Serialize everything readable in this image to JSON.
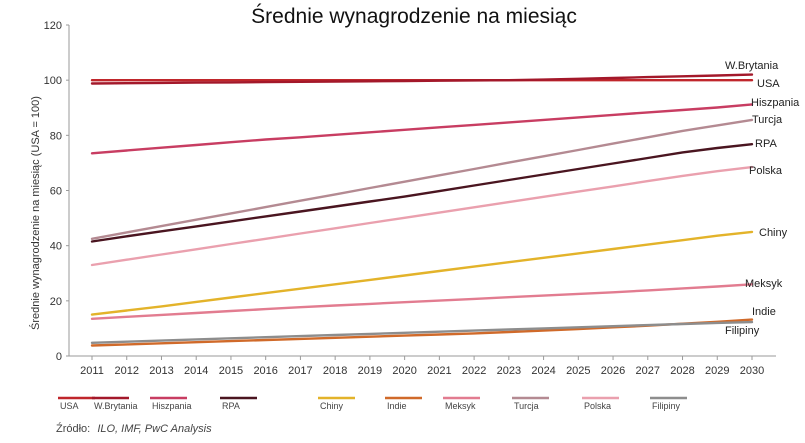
{
  "chart_data": {
    "type": "line",
    "title": "Średnie wynagrodzenie na miesiąc",
    "ylabel": "Średnie wynagrodzenie na miesiąc (USA = 100)",
    "xlabel": "",
    "ylim": [
      0,
      120
    ],
    "yticks": [
      0,
      20,
      40,
      60,
      80,
      100,
      120
    ],
    "x": [
      2011,
      2012,
      2013,
      2014,
      2015,
      2016,
      2017,
      2018,
      2019,
      2020,
      2021,
      2022,
      2023,
      2024,
      2025,
      2026,
      2027,
      2028,
      2029,
      2030
    ],
    "grid": false,
    "legend_placement": "bottom",
    "series": [
      {
        "name": "USA",
        "color": "#c0262b",
        "values": [
          100,
          100,
          100,
          100,
          100,
          100,
          100,
          100,
          100,
          100,
          100,
          100,
          100,
          100,
          100,
          100,
          100,
          100,
          100,
          100
        ]
      },
      {
        "name": "W.Brytania",
        "color": "#a3182a",
        "values": [
          98.8,
          98.9,
          99.0,
          99.1,
          99.2,
          99.3,
          99.4,
          99.5,
          99.6,
          99.7,
          99.8,
          99.9,
          100.0,
          100.2,
          100.5,
          100.8,
          101.1,
          101.4,
          101.7,
          102.0
        ]
      },
      {
        "name": "Hiszpania",
        "color": "#c83d62",
        "values": [
          73.5,
          74.5,
          75.5,
          76.5,
          77.5,
          78.5,
          79.3,
          80.2,
          81.1,
          82.0,
          82.9,
          83.8,
          84.7,
          85.6,
          86.5,
          87.4,
          88.3,
          89.2,
          90.1,
          91.2
        ]
      },
      {
        "name": "RPA",
        "color": "#4a1520",
        "values": [
          41.5,
          43.4,
          45.2,
          47.0,
          48.8,
          50.6,
          52.4,
          54.2,
          56.0,
          57.8,
          59.8,
          61.8,
          63.8,
          65.8,
          67.8,
          69.8,
          71.8,
          73.8,
          75.4,
          76.8
        ]
      },
      {
        "name": "Chiny",
        "color": "#e3b32a",
        "values": [
          15.0,
          16.5,
          18.0,
          19.6,
          21.2,
          22.8,
          24.4,
          26.0,
          27.6,
          29.2,
          30.8,
          32.4,
          34.0,
          35.6,
          37.2,
          38.8,
          40.4,
          42.0,
          43.6,
          45.0
        ]
      },
      {
        "name": "Indie",
        "color": "#d06a2a",
        "values": [
          3.8,
          4.2,
          4.6,
          5.0,
          5.4,
          5.8,
          6.2,
          6.6,
          7.0,
          7.4,
          7.8,
          8.2,
          8.7,
          9.2,
          9.8,
          10.4,
          11.0,
          11.7,
          12.4,
          13.2
        ]
      },
      {
        "name": "Meksyk",
        "color": "#e27c90",
        "values": [
          13.5,
          14.2,
          14.9,
          15.6,
          16.3,
          17.0,
          17.7,
          18.3,
          18.9,
          19.5,
          20.1,
          20.7,
          21.3,
          21.9,
          22.5,
          23.1,
          23.8,
          24.5,
          25.2,
          26.0
        ]
      },
      {
        "name": "Turcja",
        "color": "#b48a92",
        "values": [
          42.5,
          44.8,
          47.1,
          49.4,
          51.7,
          54.0,
          56.3,
          58.6,
          60.9,
          63.2,
          65.5,
          67.8,
          70.1,
          72.4,
          74.7,
          77.0,
          79.3,
          81.6,
          83.6,
          85.6
        ]
      },
      {
        "name": "Polska",
        "color": "#eaa0ae",
        "values": [
          33.0,
          34.9,
          36.8,
          38.7,
          40.6,
          42.5,
          44.4,
          46.3,
          48.2,
          50.1,
          52.0,
          53.9,
          55.8,
          57.7,
          59.6,
          61.5,
          63.4,
          65.3,
          67.0,
          68.5
        ]
      },
      {
        "name": "Filipiny",
        "color": "#8d8d8d",
        "values": [
          4.8,
          5.2,
          5.6,
          6.0,
          6.4,
          6.8,
          7.2,
          7.6,
          8.0,
          8.4,
          8.8,
          9.2,
          9.6,
          10.0,
          10.4,
          10.8,
          11.2,
          11.6,
          12.0,
          12.3
        ]
      }
    ],
    "end_labels": [
      "W.Brytania",
      "USA",
      "Hiszpania",
      "Turcja",
      "RPA",
      "Polska",
      "Chiny",
      "Meksyk",
      "Indie",
      "Filipiny"
    ]
  },
  "source": {
    "prefix": "Źródło:",
    "text": "ILO, IMF, PwC Analysis"
  }
}
